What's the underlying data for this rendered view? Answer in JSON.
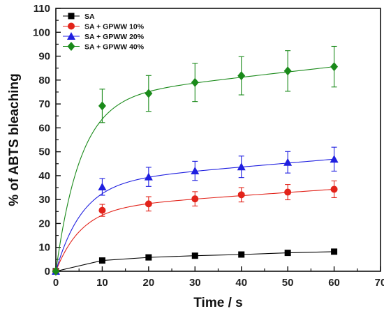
{
  "colors": {
    "SA": "#000000",
    "SA + GPWW 10%": "#e2231a",
    "SA + GPWW 20%": "#1f1fe0",
    "SA + GPWW 40%": "#1a8a1a"
  },
  "chart_data": {
    "type": "scatter",
    "xlabel": "Time / s",
    "ylabel": "% of ABTS bleaching",
    "xlim": [
      0,
      70
    ],
    "ylim": [
      0,
      110
    ],
    "xticks": [
      0,
      10,
      20,
      30,
      40,
      50,
      60,
      70
    ],
    "yticks": [
      0,
      10,
      20,
      30,
      40,
      50,
      60,
      70,
      80,
      90,
      100,
      110
    ],
    "grid": false,
    "legend_position": "top-left",
    "x": [
      0,
      10,
      20,
      30,
      40,
      50,
      60
    ],
    "series": [
      {
        "name": "SA",
        "marker": "square",
        "line": "straight",
        "values": [
          0,
          4.5,
          5.8,
          6.5,
          7.0,
          7.7,
          8.2
        ],
        "errors": [
          0,
          0,
          0,
          0,
          0,
          0,
          0
        ]
      },
      {
        "name": "SA + GPWW 10%",
        "marker": "circle",
        "line": "fitted",
        "values": [
          0,
          25.5,
          28.2,
          30.3,
          32.0,
          33.1,
          34.3
        ],
        "errors": [
          0,
          2.5,
          3.0,
          3.0,
          3.0,
          3.2,
          3.5
        ]
      },
      {
        "name": "SA + GPWW 20%",
        "marker": "triangle",
        "line": "fitted",
        "values": [
          0,
          35.3,
          39.5,
          42.0,
          43.7,
          45.6,
          46.9
        ],
        "errors": [
          0,
          3.5,
          4.0,
          4.0,
          4.5,
          4.5,
          5.0
        ]
      },
      {
        "name": "SA + GPWW 40%",
        "marker": "diamond",
        "line": "fitted",
        "values": [
          0,
          69.2,
          74.4,
          79.0,
          81.8,
          83.8,
          85.6
        ],
        "errors": [
          0,
          7.0,
          7.5,
          8.0,
          8.0,
          8.5,
          8.5
        ]
      }
    ]
  }
}
